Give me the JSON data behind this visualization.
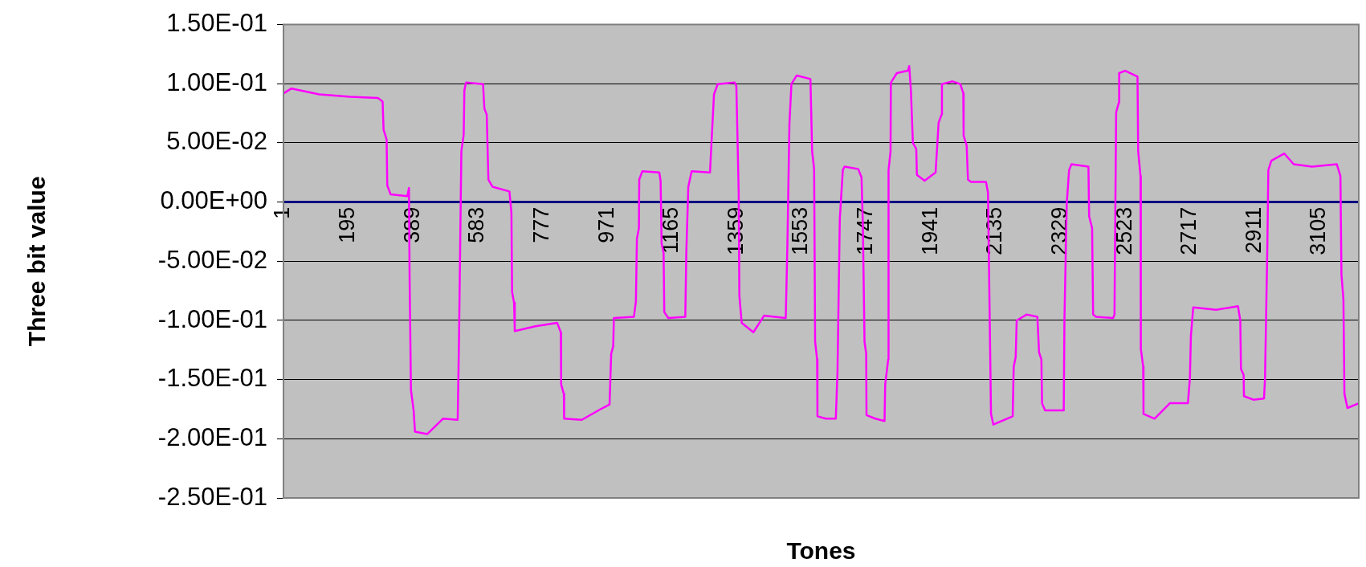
{
  "chart_data": {
    "type": "line",
    "xlabel": "Tones",
    "ylabel": "Three bit value",
    "color": "#ff00ff",
    "marker": "none",
    "grid": "y",
    "x": [
      2,
      25,
      108,
      201,
      284,
      298,
      301,
      310,
      312,
      322,
      372,
      377,
      379,
      383,
      391,
      395,
      432,
      479,
      523,
      527,
      534,
      541,
      543,
      548,
      599,
      603,
      610,
      615,
      627,
      678,
      684,
      686,
      692,
      694,
      756,
      821,
      832,
      833,
      841,
      842,
      895,
      951,
      978,
      983,
      989,
      991,
      1051,
      1057,
      1060,
      1066,
      1067,
      1076,
      1127,
      1131,
      1134,
      1140,
      1142,
      1154,
      1205,
      1208,
      1214,
      1224,
      1279,
      1284,
      1291,
      1302,
      1353,
      1358,
      1365,
      1367,
      1374,
      1409,
      1441,
      1506,
      1511,
      1517,
      1523,
      1539,
      1580,
      1585,
      1591,
      1594,
      1600,
      1601,
      1626,
      1656,
      1661,
      1668,
      1677,
      1682,
      1723,
      1733,
      1737,
      1742,
      1747,
      1748,
      1774,
      1802,
      1804,
      1813,
      1814,
      1820,
      1821,
      1839,
      1872,
      1876,
      1881,
      1887,
      1897,
      1899,
      1922,
      1955,
      1964,
      1973,
      1974,
      2006,
      2029,
      2038,
      2039,
      2048,
      2052,
      2061,
      2106,
      2112,
      2117,
      2121,
      2128,
      2186,
      2189,
      2195,
      2198,
      2228,
      2260,
      2265,
      2272,
      2274,
      2283,
      2339,
      2341,
      2348,
      2355,
      2362,
      2413,
      2415,
      2424,
      2427,
      2436,
      2487,
      2491,
      2496,
      2504,
      2505,
      2523,
      2560,
      2562,
      2569,
      2570,
      2577,
      2578,
      2611,
      2657,
      2711,
      2717,
      2720,
      2727,
      2796,
      2861,
      2868,
      2870,
      2878,
      2879,
      2907,
      2939,
      2942,
      2949,
      2952,
      2961,
      3000,
      3028,
      3083,
      3157,
      3168,
      3171,
      3177,
      3180,
      3189,
      3223
    ],
    "values": [
      0.092,
      0.096,
      0.091,
      0.089,
      0.088,
      0.085,
      0.061,
      0.053,
      0.014,
      0.0065,
      0.005,
      0.012,
      -0.066,
      -0.159,
      -0.176,
      -0.194,
      -0.196,
      -0.183,
      -0.184,
      -0.115,
      0.043,
      0.057,
      0.0945,
      0.101,
      0.0997,
      0.079,
      0.074,
      0.019,
      0.013,
      0.009,
      -0.009,
      -0.076,
      -0.085,
      -0.109,
      -0.105,
      -0.102,
      -0.11,
      -0.154,
      -0.162,
      -0.183,
      -0.184,
      -0.175,
      -0.171,
      -0.128,
      -0.122,
      -0.098,
      -0.097,
      -0.084,
      -0.031,
      -0.022,
      0.019,
      0.026,
      0.025,
      0.018,
      -0.035,
      -0.043,
      -0.093,
      -0.098,
      -0.097,
      -0.043,
      0.013,
      0.026,
      0.025,
      0.053,
      0.091,
      0.0997,
      0.101,
      0.098,
      0.008,
      -0.079,
      -0.102,
      -0.11,
      -0.096,
      -0.098,
      -0.035,
      0.066,
      0.0997,
      0.107,
      0.104,
      0.043,
      0.028,
      -0.118,
      -0.133,
      -0.181,
      -0.183,
      -0.183,
      -0.144,
      -0.014,
      0.027,
      0.03,
      0.028,
      0.021,
      -0.018,
      -0.118,
      -0.128,
      -0.18,
      -0.183,
      -0.185,
      -0.154,
      -0.133,
      0.027,
      0.043,
      0.101,
      0.109,
      0.111,
      0.115,
      0.0945,
      0.05,
      0.045,
      0.023,
      0.018,
      0.025,
      0.067,
      0.074,
      0.0997,
      0.102,
      0.0997,
      0.092,
      0.056,
      0.048,
      0.019,
      0.017,
      0.017,
      0.008,
      -0.095,
      -0.179,
      -0.188,
      -0.181,
      -0.139,
      -0.131,
      -0.1,
      -0.095,
      -0.097,
      -0.127,
      -0.133,
      -0.17,
      -0.176,
      -0.176,
      -0.1,
      -0.001,
      0.027,
      0.032,
      0.03,
      -0.012,
      -0.022,
      -0.095,
      -0.097,
      -0.098,
      -0.095,
      0.076,
      0.084,
      0.109,
      0.111,
      0.106,
      0.043,
      0.022,
      -0.124,
      -0.139,
      -0.179,
      -0.183,
      -0.17,
      -0.17,
      -0.149,
      -0.113,
      -0.089,
      -0.091,
      -0.088,
      -0.1,
      -0.141,
      -0.146,
      -0.164,
      -0.167,
      -0.166,
      -0.15,
      -0.038,
      0.027,
      0.035,
      0.041,
      0.032,
      0.03,
      0.032,
      0.022,
      -0.061,
      -0.082,
      -0.162,
      -0.174,
      -0.17
    ],
    "xlim": [
      1,
      3223
    ],
    "xticks": [
      1,
      195,
      389,
      583,
      777,
      971,
      1165,
      1359,
      1553,
      1747,
      1941,
      2135,
      2329,
      2523,
      2717,
      2911,
      3105
    ],
    "ylim": [
      -0.25,
      0.15
    ],
    "yticks": [
      {
        "value": 0.15,
        "label": "1.50E-01"
      },
      {
        "value": 0.1,
        "label": "1.00E-01"
      },
      {
        "value": 0.05,
        "label": "5.00E-02"
      },
      {
        "value": 0,
        "label": "0.00E+00"
      },
      {
        "value": -0.05,
        "label": "-5.00E-02"
      },
      {
        "value": -0.1,
        "label": "-1.00E-01"
      },
      {
        "value": -0.15,
        "label": "-1.50E-01"
      },
      {
        "value": -0.2,
        "label": "-2.00E-01"
      },
      {
        "value": -0.25,
        "label": "-2.50E-01"
      }
    ]
  }
}
